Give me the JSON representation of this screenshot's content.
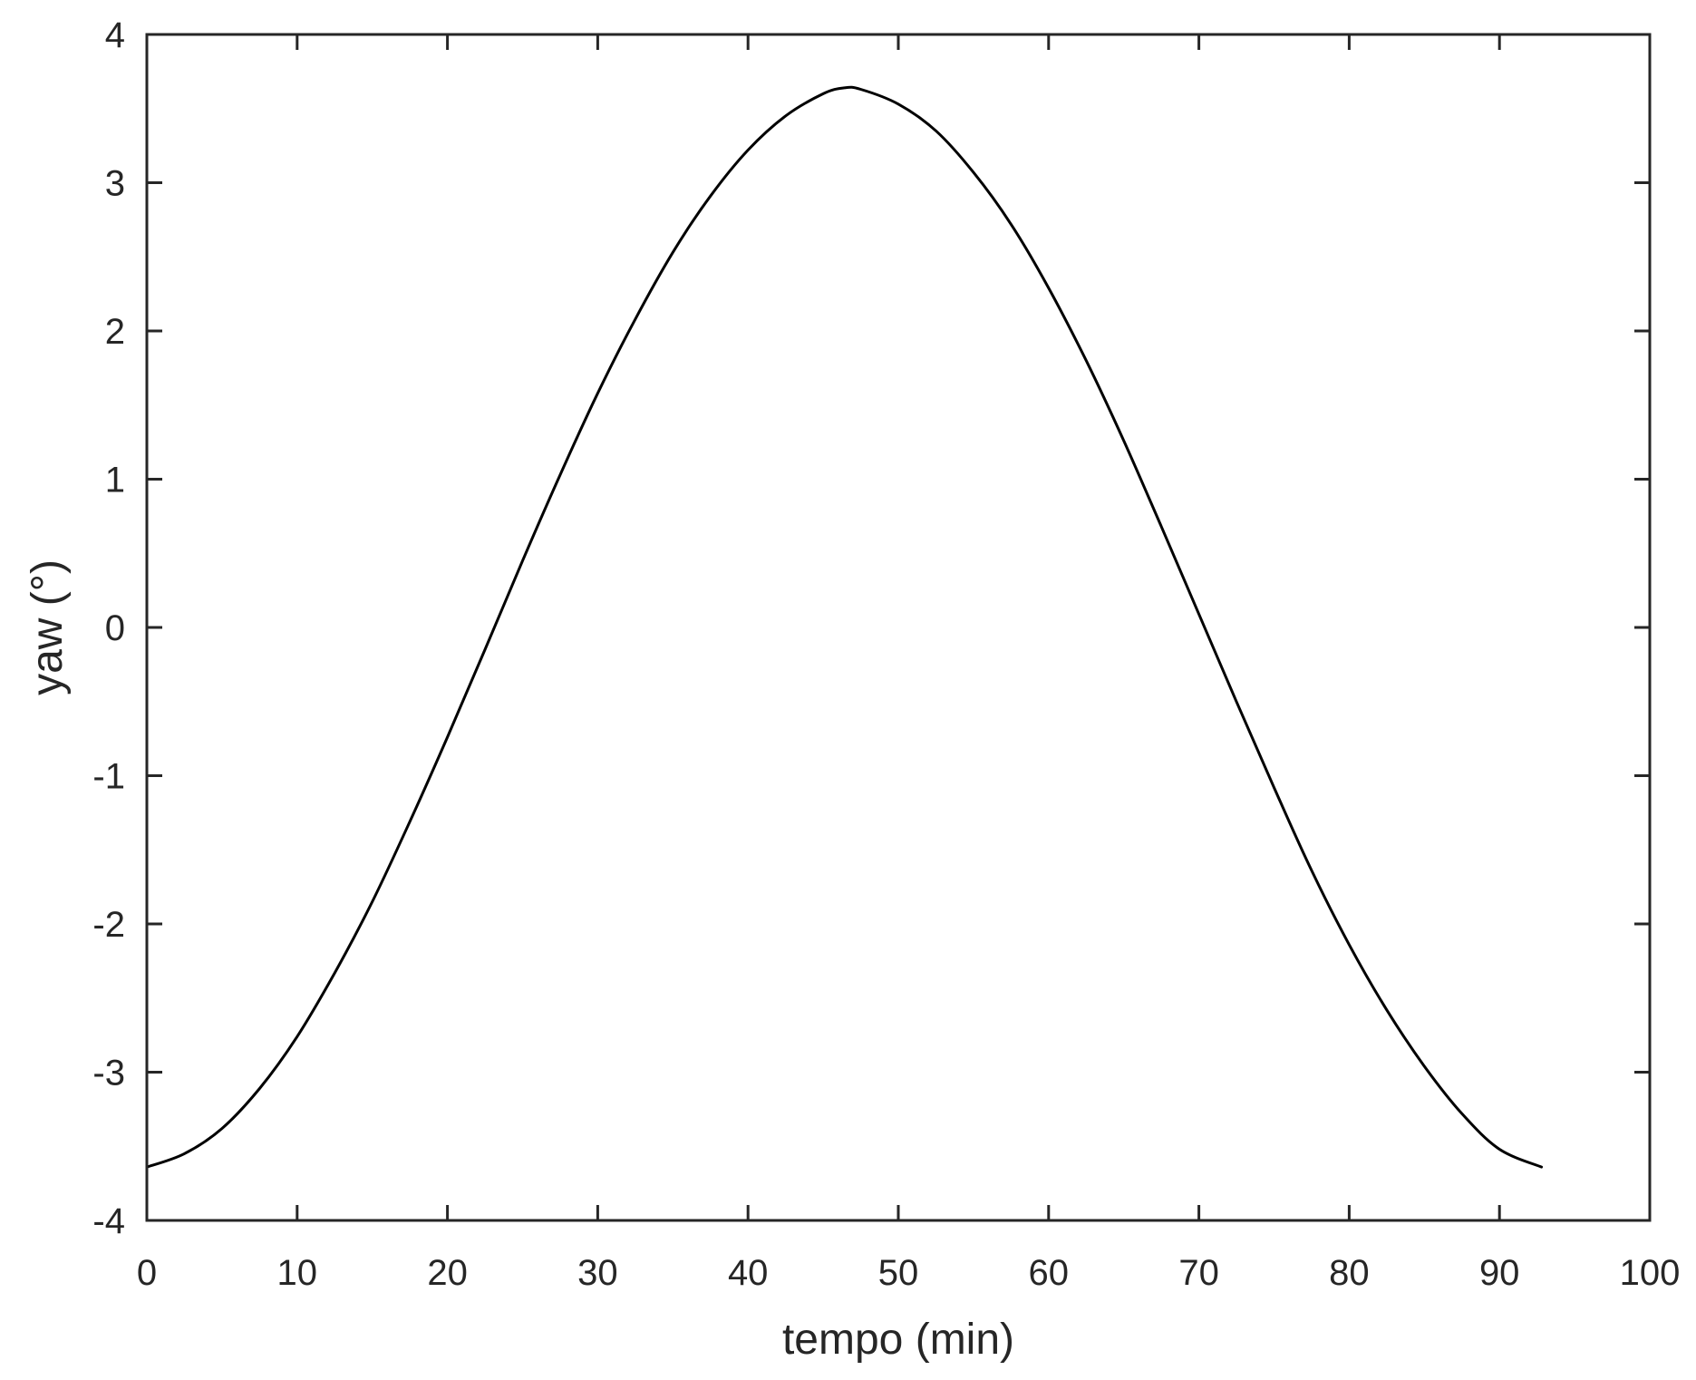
{
  "chart_data": {
    "type": "line",
    "title": "",
    "xlabel": "tempo (min)",
    "ylabel": "yaw (°)",
    "xlim": [
      0,
      100
    ],
    "ylim": [
      -4,
      4
    ],
    "xticks": [
      0,
      10,
      20,
      30,
      40,
      50,
      60,
      70,
      80,
      90,
      100
    ],
    "yticks": [
      -4,
      -3,
      -2,
      -1,
      0,
      1,
      2,
      3,
      4
    ],
    "grid": false,
    "legend": "none",
    "line_color": "#000000",
    "series": [
      {
        "x": [
          0,
          2.5,
          5,
          7.5,
          10,
          12.5,
          15,
          17.5,
          20,
          22.5,
          25,
          27.5,
          30,
          32.5,
          35,
          37.5,
          40,
          42.5,
          45,
          46.4,
          47.5,
          50,
          52.5,
          55,
          57.5,
          60,
          62.5,
          65,
          67.5,
          70,
          72.5,
          75,
          77.5,
          80,
          82.5,
          85,
          87.5,
          90,
          92.8
        ],
        "y": [
          -3.64,
          -3.55,
          -3.38,
          -3.11,
          -2.76,
          -2.33,
          -1.85,
          -1.31,
          -0.74,
          -0.15,
          0.45,
          1.03,
          1.58,
          2.08,
          2.53,
          2.91,
          3.22,
          3.45,
          3.6,
          3.64,
          3.63,
          3.53,
          3.35,
          3.07,
          2.72,
          2.29,
          1.8,
          1.26,
          0.68,
          0.09,
          -0.5,
          -1.08,
          -1.64,
          -2.14,
          -2.58,
          -2.96,
          -3.28,
          -3.52,
          -3.64
        ]
      }
    ]
  }
}
